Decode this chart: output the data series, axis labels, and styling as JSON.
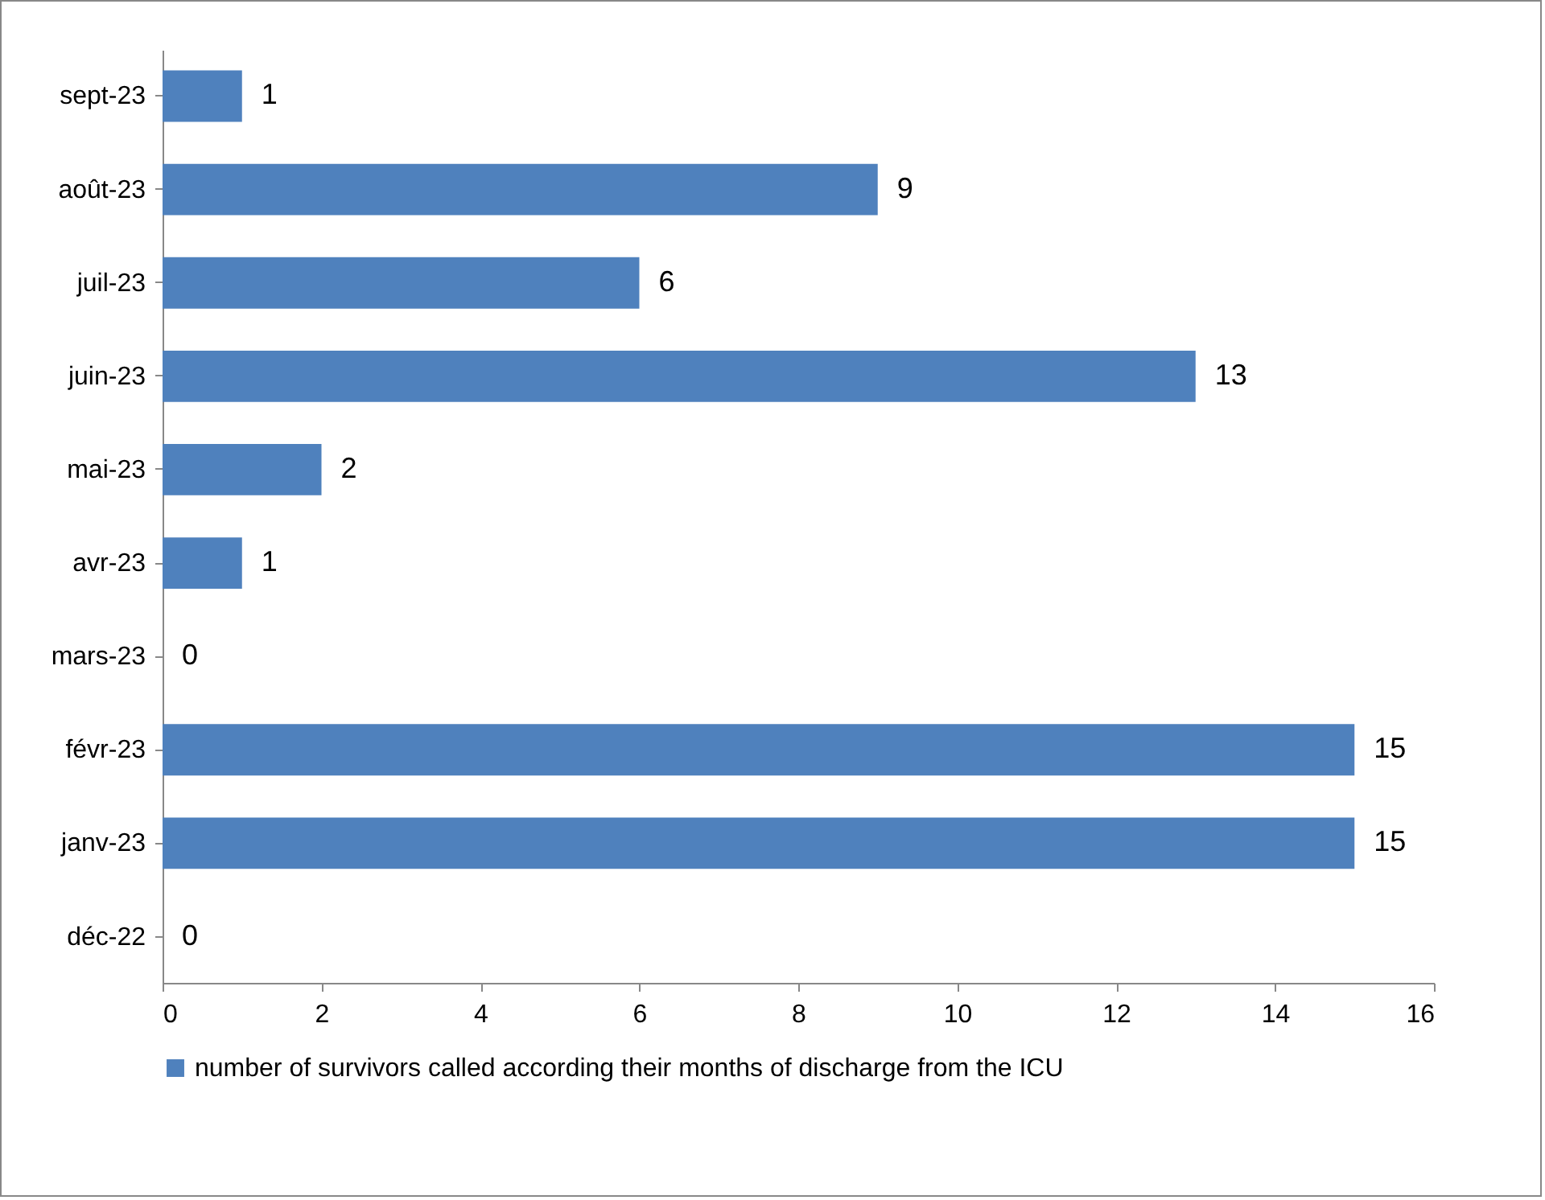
{
  "chart_data": {
    "type": "bar",
    "orientation": "horizontal",
    "categories": [
      "sept-23",
      "août-23",
      "juil-23",
      "juin-23",
      "mai-23",
      "avr-23",
      "mars-23",
      "févr-23",
      "janv-23",
      "déc-22"
    ],
    "series": [
      {
        "name": "number of survivors called according their months of discharge from the ICU",
        "color": "#4f81bd",
        "values": [
          1,
          9,
          6,
          13,
          2,
          1,
          0,
          15,
          15,
          0
        ]
      }
    ],
    "xlim": [
      0,
      16
    ],
    "xticks": [
      0,
      2,
      4,
      6,
      8,
      10,
      12,
      14,
      16
    ],
    "grid": false,
    "legend": "bottom",
    "data_labels": true
  }
}
